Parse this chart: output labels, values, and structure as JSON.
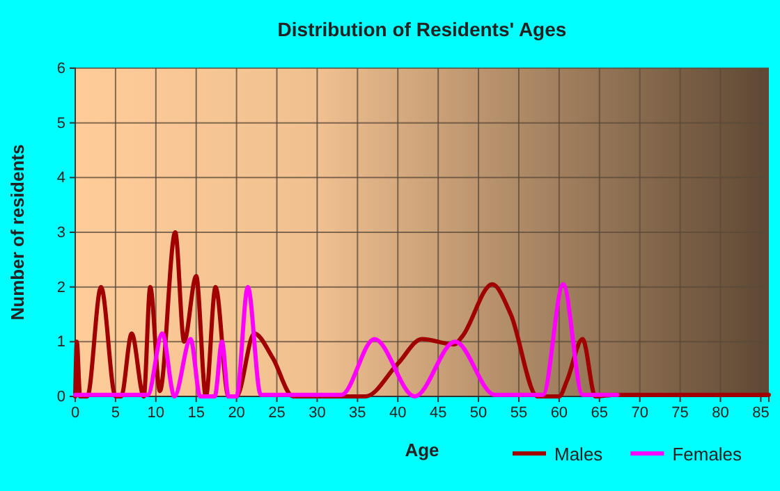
{
  "chart_data": {
    "type": "line",
    "title": "Distribution of Residents' Ages",
    "xlabel": "Age",
    "ylabel": "Number of residents",
    "xlim": [
      0,
      86
    ],
    "ylim": [
      0,
      6
    ],
    "xticks": [
      0,
      5,
      10,
      15,
      20,
      25,
      30,
      35,
      40,
      45,
      50,
      55,
      60,
      65,
      70,
      75,
      80,
      85
    ],
    "yticks": [
      0,
      1,
      2,
      3,
      4,
      5,
      6
    ],
    "grid": true,
    "legend": "bottom right",
    "marker": "none",
    "line_style": "solid",
    "series": [
      {
        "name": "Males",
        "color": "#a00000",
        "x": [
          0,
          0.2,
          0.6,
          1.5,
          3.2,
          5,
          5.7,
          7,
          8.5,
          9.3,
          10.5,
          12.4,
          13.5,
          15,
          16.2,
          17.4,
          19,
          20,
          22.2,
          24.5,
          27,
          30,
          36,
          40,
          43,
          47,
          48,
          51.7,
          54,
          57.3,
          60,
          61,
          62.9,
          64.5,
          67,
          86
        ],
        "values": [
          0,
          1,
          0,
          0,
          2,
          0,
          0,
          1.15,
          0,
          2,
          0.1,
          3,
          1,
          2.2,
          0,
          2,
          0,
          0,
          1.15,
          0.7,
          0,
          0,
          0,
          0.6,
          1.05,
          0.95,
          1.1,
          2.05,
          1.5,
          0,
          0,
          0.3,
          1.05,
          0,
          0.03,
          0.03
        ]
      },
      {
        "name": "Females",
        "color": "#ff00ff",
        "x": [
          0,
          9,
          10.8,
          12.3,
          14.3,
          15.5,
          17.3,
          18.2,
          19,
          20,
          21.4,
          23,
          33,
          37.1,
          42.1,
          47.1,
          52,
          58,
          60.5,
          62.9,
          67.2
        ],
        "values": [
          0.03,
          0.03,
          1.15,
          0,
          1.05,
          0,
          0,
          1,
          0,
          0,
          2,
          0.03,
          0.03,
          1.05,
          0,
          1,
          0.03,
          0.03,
          2.05,
          0.03,
          0.03
        ]
      }
    ]
  }
}
